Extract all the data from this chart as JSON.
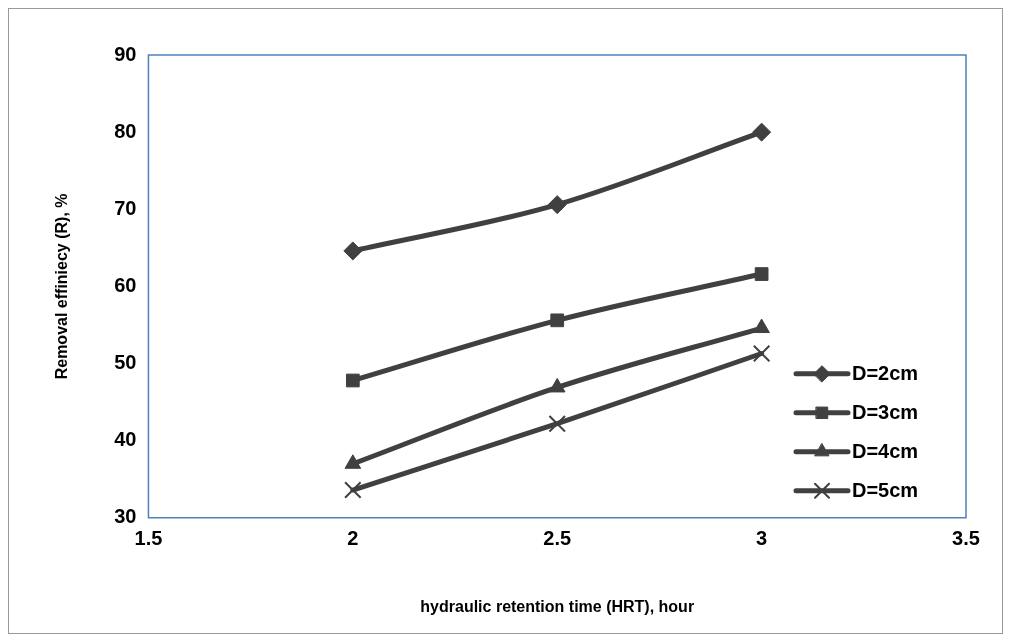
{
  "chart_data": {
    "type": "line",
    "xlabel": "hydraulic retention time (HRT), hour",
    "ylabel": "Removal effiniecy (R), %",
    "x": [
      2,
      2.5,
      3
    ],
    "xlim": [
      1.5,
      3.5
    ],
    "xticks": [
      1.5,
      2,
      2.5,
      3,
      3.5
    ],
    "ylim": [
      30,
      90
    ],
    "yticks": [
      30,
      40,
      50,
      60,
      70,
      80,
      90
    ],
    "grid": false,
    "legend": "bottom right",
    "line_style": "solid",
    "series": [
      {
        "name": "D=2cm",
        "color": "#404040",
        "marker": "diamond",
        "values": [
          64.6,
          70.6,
          80.0
        ]
      },
      {
        "name": "D=3cm",
        "color": "#404040",
        "marker": "square",
        "values": [
          47.8,
          55.6,
          61.6
        ]
      },
      {
        "name": "D=4cm",
        "color": "#404040",
        "marker": "triangle",
        "values": [
          37.0,
          46.9,
          54.6
        ]
      },
      {
        "name": "D=5cm",
        "color": "#404040",
        "marker": "cross",
        "values": [
          33.6,
          42.2,
          51.3
        ]
      }
    ]
  }
}
